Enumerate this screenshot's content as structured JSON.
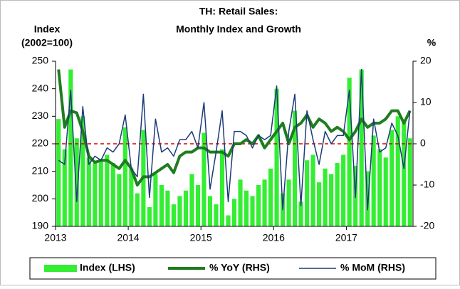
{
  "chart_data": {
    "type": "bar",
    "title": [
      "TH: Retail Sales:",
      "Monthly Index and Growth"
    ],
    "y_label": [
      "Index",
      "(2002=100)"
    ],
    "y2_label": "%",
    "categories": [
      "2013",
      null,
      null,
      null,
      null,
      null,
      null,
      null,
      null,
      null,
      null,
      null,
      "2014",
      null,
      null,
      null,
      null,
      null,
      null,
      null,
      null,
      null,
      null,
      null,
      "2015",
      null,
      null,
      null,
      null,
      null,
      null,
      null,
      null,
      null,
      null,
      null,
      "2016",
      null,
      null,
      null,
      null,
      null,
      null,
      null,
      null,
      null,
      null,
      null,
      "2017",
      null,
      null,
      null,
      null,
      null,
      null,
      null,
      null,
      null,
      null
    ],
    "series": [
      {
        "name": "Index (LHS)",
        "type": "bar",
        "color": "#33ee33",
        "values": [
          229,
          218,
          247,
          222,
          230,
          215,
          213,
          214,
          216,
          213,
          209,
          226,
          211,
          202,
          225,
          197,
          209,
          205,
          203,
          198,
          201,
          203,
          209,
          205,
          224,
          201,
          198,
          218,
          194,
          200,
          207,
          203,
          201,
          205,
          207,
          211,
          240,
          202,
          207,
          232,
          199,
          214,
          216,
          206,
          211,
          209,
          213,
          216,
          244,
          212,
          247,
          210,
          223,
          218,
          215,
          225,
          230,
          228,
          222
        ]
      },
      {
        "name": "% YoY (RHS)",
        "type": "line",
        "axis": "y2",
        "color": "#1e7d1e",
        "width": 4,
        "values": [
          18,
          4,
          8,
          7.5,
          3,
          -3,
          -4.5,
          -4,
          -4,
          -5,
          -6,
          -4,
          -6,
          -10,
          -8,
          -8,
          -7,
          -6,
          -5,
          -7,
          -3,
          -2,
          -2,
          -1,
          -1,
          -2,
          -2,
          -2,
          -3,
          0,
          0,
          1,
          0,
          2,
          -1,
          1,
          3,
          5,
          0,
          4,
          5,
          7,
          4,
          6,
          5,
          3,
          4,
          3,
          1,
          3,
          6,
          4,
          5,
          5,
          6,
          8,
          8,
          5,
          8
        ]
      },
      {
        "name": "% MoM (RHS)",
        "type": "line",
        "axis": "y2",
        "color": "#1c3a78",
        "width": 1.5,
        "values": [
          -4,
          -5,
          13,
          -14,
          9,
          -5,
          -3,
          -4,
          -1,
          -2,
          0,
          7,
          -6,
          -8,
          12,
          -13,
          6,
          -2,
          -1,
          -3,
          1,
          1,
          3,
          -1,
          10,
          -11,
          -2,
          8,
          -14,
          3,
          3,
          2,
          -1,
          2,
          1,
          2,
          14,
          -16,
          3,
          12,
          -15,
          8,
          1,
          -5,
          3,
          0,
          2,
          2,
          13,
          -13,
          18,
          -16,
          6,
          -2,
          -1,
          5,
          2,
          -6,
          8
        ]
      }
    ],
    "ylim": [
      190,
      250
    ],
    "yticks": [
      190,
      200,
      210,
      220,
      230,
      240,
      250
    ],
    "y2lim": [
      -20,
      20
    ],
    "y2ticks": [
      -20,
      -10,
      0,
      10,
      20
    ],
    "reference_line": {
      "value": 0,
      "axis": "y2",
      "color": "#dd0000"
    },
    "legend": "bottom",
    "grid": false
  }
}
